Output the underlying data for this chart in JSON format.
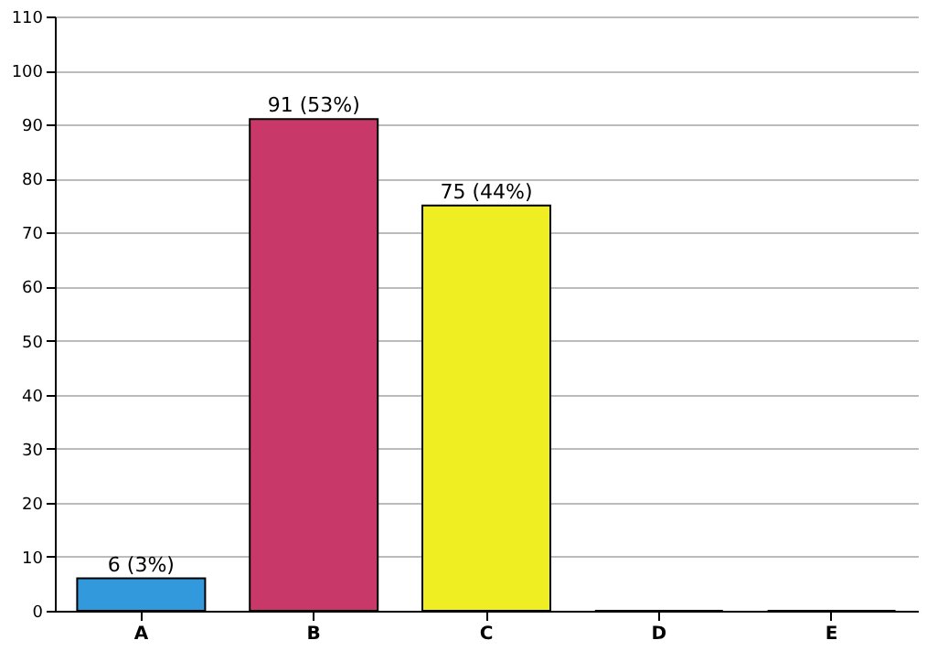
{
  "chart_data": {
    "type": "bar",
    "categories": [
      "A",
      "B",
      "C",
      "D",
      "E"
    ],
    "values": [
      6,
      91,
      75,
      0,
      0
    ],
    "colors": [
      "#3399dd",
      "#c8396a",
      "#eeee22",
      "#3399dd",
      "#3399dd"
    ],
    "value_labels": [
      "6 (3%)",
      "91 (53%)",
      "75 (44%)",
      null,
      null
    ],
    "ylim": [
      0,
      110
    ],
    "yticks": [
      0,
      10,
      20,
      30,
      40,
      50,
      60,
      70,
      80,
      90,
      100,
      110
    ],
    "grid": "y",
    "legend": false
  }
}
